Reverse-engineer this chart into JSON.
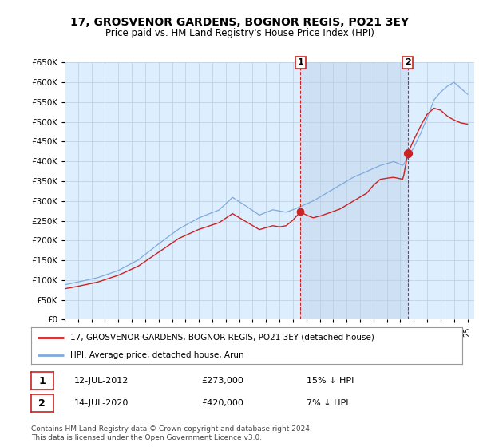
{
  "title": "17, GROSVENOR GARDENS, BOGNOR REGIS, PO21 3EY",
  "subtitle": "Price paid vs. HM Land Registry's House Price Index (HPI)",
  "ytick_values": [
    0,
    50000,
    100000,
    150000,
    200000,
    250000,
    300000,
    350000,
    400000,
    450000,
    500000,
    550000,
    600000,
    650000
  ],
  "hpi_color": "#7faadd",
  "price_color": "#cc2222",
  "bg_color": "#ddeeff",
  "shaded_color": "#c8dcf0",
  "plot_bg": "#ffffff",
  "grid_color": "#bbccdd",
  "annotation1": {
    "label": "1",
    "year": 2012.55,
    "price": 273000,
    "text": "12-JUL-2012",
    "amount": "£273,000",
    "pct": "15% ↓ HPI"
  },
  "annotation2": {
    "label": "2",
    "year": 2020.55,
    "price": 420000,
    "text": "14-JUL-2020",
    "amount": "£420,000",
    "pct": "7% ↓ HPI"
  },
  "legend_label1": "17, GROSVENOR GARDENS, BOGNOR REGIS, PO21 3EY (detached house)",
  "legend_label2": "HPI: Average price, detached house, Arun",
  "footnote": "Contains HM Land Registry data © Crown copyright and database right 2024.\nThis data is licensed under the Open Government Licence v3.0.",
  "xlim_min": 1995.0,
  "xlim_max": 2025.5,
  "ylim_min": 0,
  "ylim_max": 650000
}
